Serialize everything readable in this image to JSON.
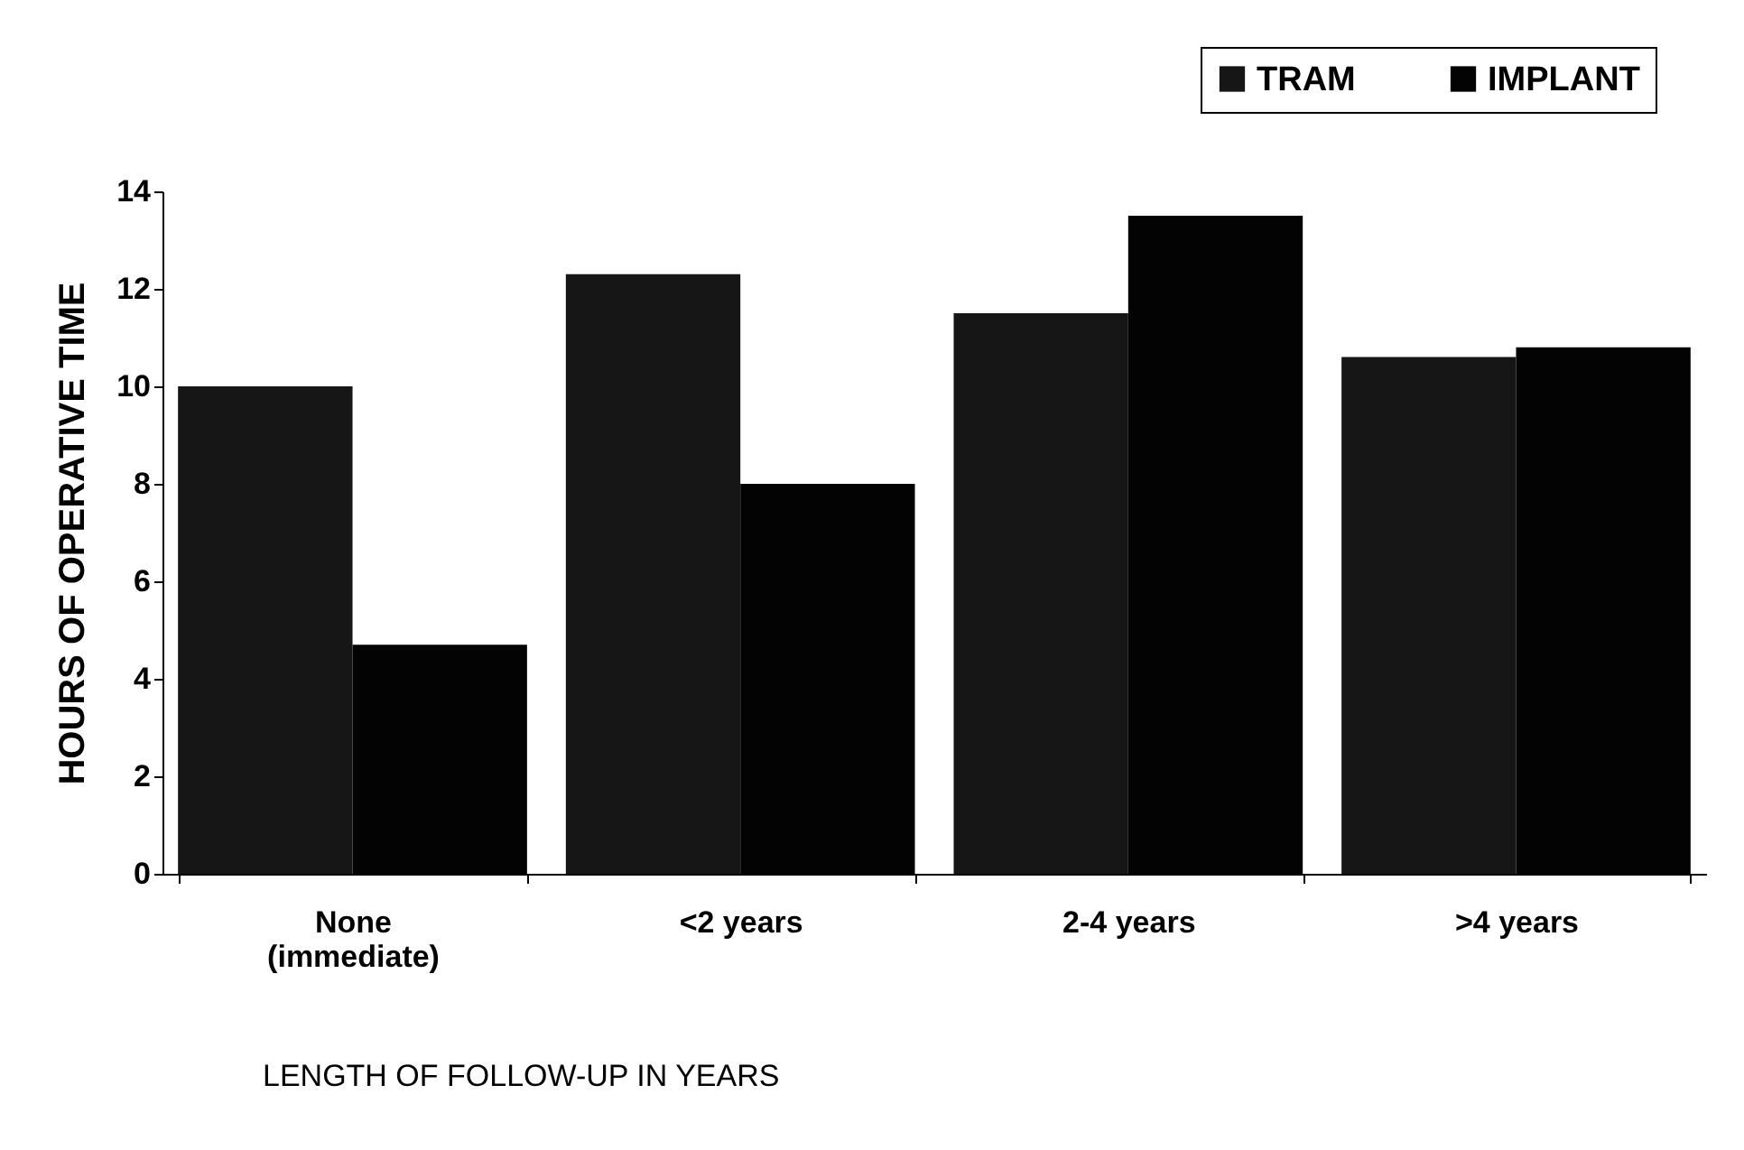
{
  "chart_data": {
    "type": "bar",
    "xlabel": "LENGTH OF FOLLOW-UP IN YEARS",
    "ylabel": "HOURS OF OPERATIVE TIME",
    "categories": [
      "None (immediate)",
      "<2 years",
      "2-4 years",
      ">4 years"
    ],
    "series": [
      {
        "name": "TRAM",
        "color": "#161616",
        "values": [
          10.0,
          12.3,
          11.5,
          10.6
        ]
      },
      {
        "name": "IMPLANT",
        "color": "#030303",
        "values": [
          4.7,
          8.0,
          13.5,
          10.8
        ]
      }
    ],
    "ylim": [
      0,
      14
    ],
    "yticks": [
      0,
      2,
      4,
      6,
      8,
      10,
      12,
      14
    ],
    "grid": false,
    "legend": "top right"
  }
}
